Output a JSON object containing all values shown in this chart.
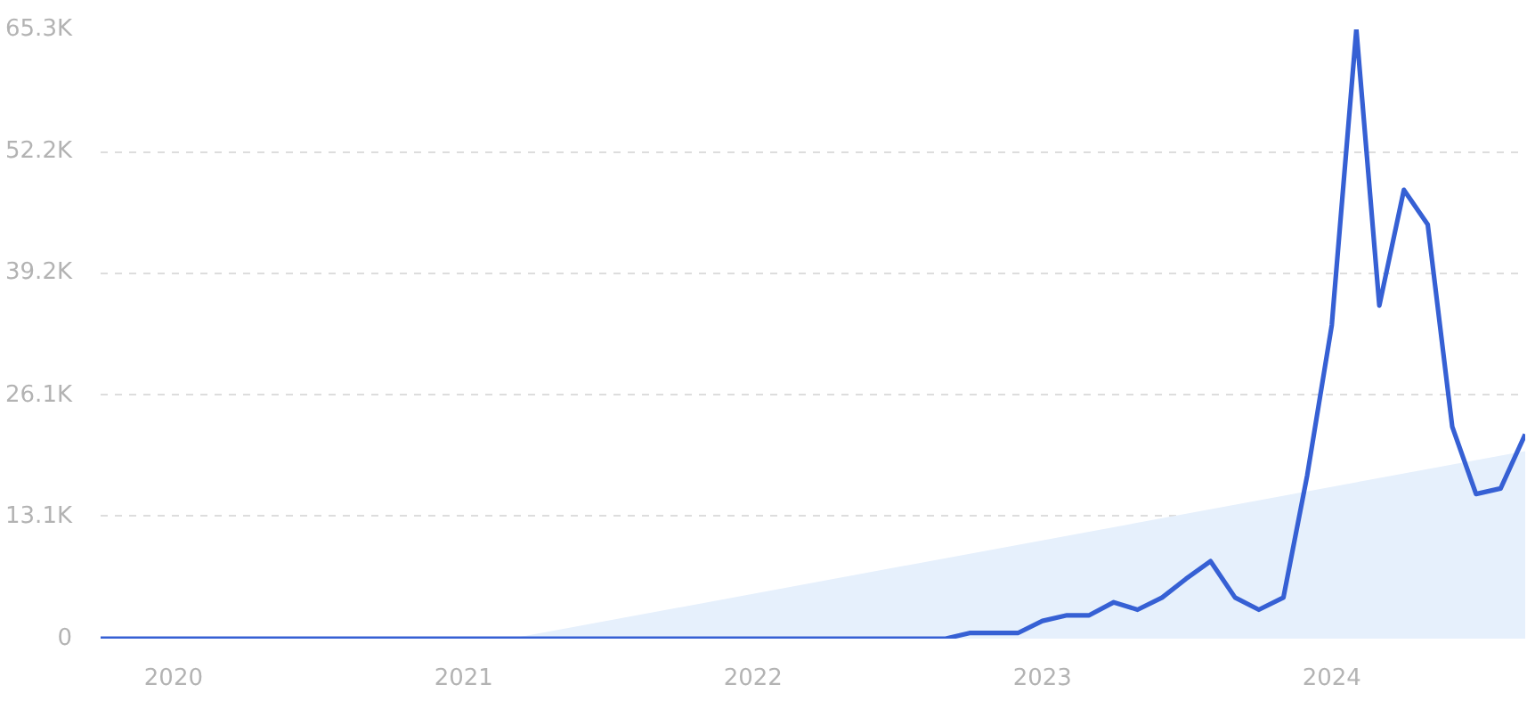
{
  "chart_data": {
    "type": "line",
    "xlim": [
      "2019-10",
      "2024-09"
    ],
    "xticks": [
      "2020",
      "2021",
      "2022",
      "2023",
      "2024"
    ],
    "ylim": [
      0,
      65300
    ],
    "yticks": [
      0,
      {
        "value": 13100,
        "label": "13.1K"
      },
      {
        "value": 26100,
        "label": "26.1K"
      },
      {
        "value": 39200,
        "label": "39.2K"
      },
      {
        "value": 52200,
        "label": "52.2K"
      },
      {
        "value": 65300,
        "label": "65.3K"
      }
    ],
    "grid": "y",
    "series": [
      {
        "type": "area",
        "color": "#e6f0fc",
        "x": [
          "2021-03",
          "2024-09"
        ],
        "values": [
          0,
          20100
        ]
      },
      {
        "color": "#3660d4",
        "x": [
          "2019-10",
          "2019-11",
          "2019-12",
          "2020-01",
          "2020-02",
          "2020-03",
          "2020-04",
          "2020-05",
          "2020-06",
          "2020-07",
          "2020-08",
          "2020-09",
          "2020-10",
          "2020-11",
          "2020-12",
          "2021-01",
          "2021-02",
          "2021-03",
          "2021-04",
          "2021-05",
          "2021-06",
          "2021-07",
          "2021-08",
          "2021-09",
          "2021-10",
          "2021-11",
          "2021-12",
          "2022-01",
          "2022-02",
          "2022-03",
          "2022-04",
          "2022-05",
          "2022-06",
          "2022-07",
          "2022-08",
          "2022-09",
          "2022-10",
          "2022-11",
          "2022-12",
          "2023-01",
          "2023-02",
          "2023-03",
          "2023-04",
          "2023-05",
          "2023-06",
          "2023-07",
          "2023-08",
          "2023-09",
          "2023-10",
          "2023-11",
          "2023-12",
          "2024-01",
          "2024-02",
          "2024-03",
          "2024-04",
          "2024-05",
          "2024-06",
          "2024-07",
          "2024-08",
          "2024-09"
        ],
        "values": [
          0,
          0,
          0,
          0,
          0,
          0,
          0,
          0,
          0,
          0,
          0,
          0,
          0,
          0,
          0,
          0,
          0,
          0,
          0,
          0,
          0,
          0,
          0,
          0,
          0,
          0,
          0,
          0,
          0,
          0,
          0,
          0,
          0,
          0,
          0,
          0,
          600,
          600,
          600,
          1900,
          2500,
          2500,
          3900,
          3100,
          4400,
          6400,
          8300,
          4400,
          3100,
          4400,
          17500,
          33600,
          65300,
          35700,
          48100,
          44400,
          22700,
          15500,
          16100,
          21900
        ]
      }
    ]
  }
}
